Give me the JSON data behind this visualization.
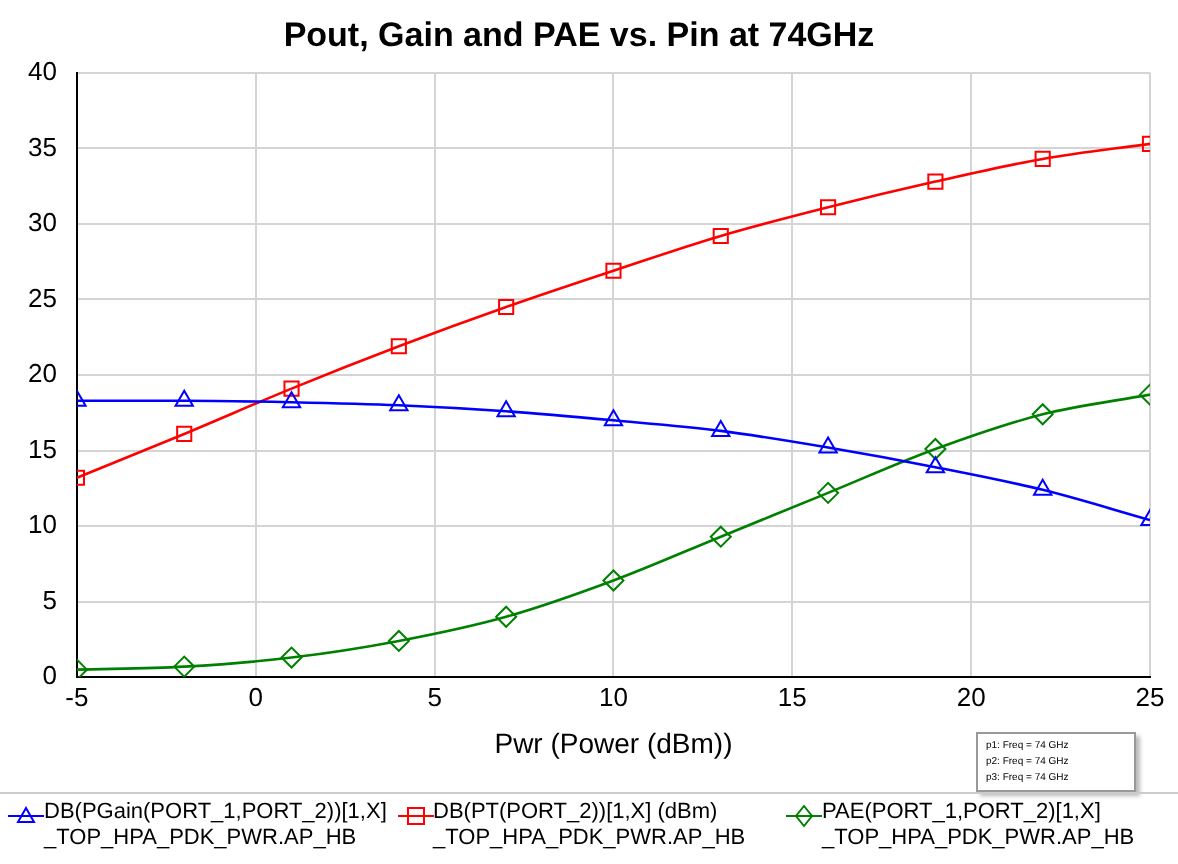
{
  "chart_data": {
    "type": "line",
    "title": "Pout, Gain and PAE vs. Pin at 74GHz",
    "xlabel": "Pwr (Power (dBm))",
    "x": [
      -5,
      -2,
      1,
      4,
      7,
      10,
      13,
      16,
      19,
      22,
      25
    ],
    "series": [
      {
        "name": "DB(PGain(PORT_1,PORT_2))[1,X] _TOP_HPA_PDK_PWR.AP_HB",
        "color": "#0000ff",
        "marker": "triangle",
        "values": [
          18.3,
          18.3,
          18.2,
          18.0,
          17.6,
          17.0,
          16.3,
          15.2,
          13.9,
          12.4,
          10.4
        ]
      },
      {
        "name": "DB(PT(PORT_2))[1,X] (dBm) _TOP_HPA_PDK_PWR.AP_HB",
        "color": "#ff0000",
        "marker": "square",
        "values": [
          13.2,
          16.1,
          19.1,
          21.9,
          24.5,
          26.9,
          29.2,
          31.1,
          32.8,
          34.3,
          35.3
        ]
      },
      {
        "name": "PAE(PORT_1,PORT_2)[1,X] _TOP_HPA_PDK_PWR.AP_HB",
        "color": "#008000",
        "marker": "diamond",
        "values": [
          0.5,
          0.7,
          1.3,
          2.4,
          4.0,
          6.4,
          9.3,
          12.2,
          15.1,
          17.4,
          18.7
        ]
      }
    ],
    "xlim": [
      -5,
      25
    ],
    "xticks": [
      -5,
      0,
      5,
      10,
      15,
      20,
      25
    ],
    "ylim": [
      0,
      40
    ],
    "yticks": [
      0,
      5,
      10,
      15,
      20,
      25,
      30,
      35,
      40
    ],
    "grid": true,
    "legend": "bottom",
    "line_style": "solid",
    "annotations": [
      "p1: Freq = 74 GHz",
      "p2: Freq = 74 GHz",
      "p3: Freq = 74 GHz"
    ]
  }
}
